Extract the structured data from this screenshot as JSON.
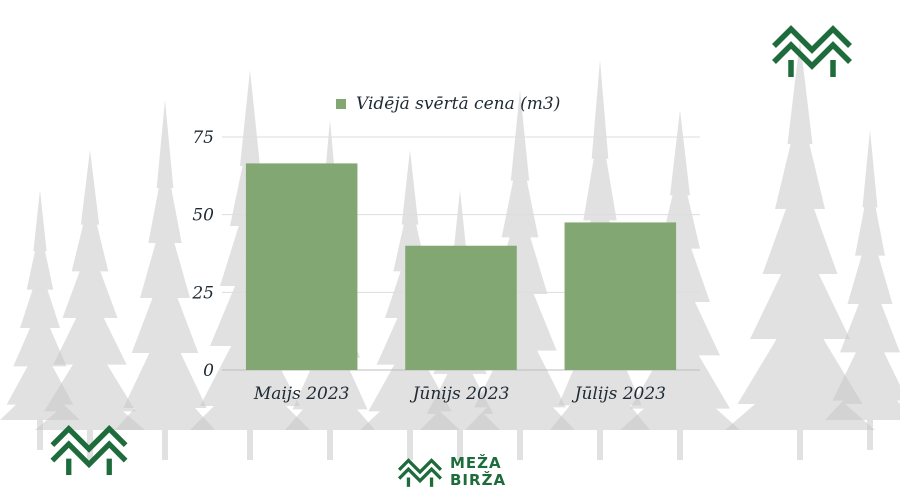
{
  "colors": {
    "bar": "#82a773",
    "brand": "#1e6b3c",
    "text": "#1f2a35",
    "grid": "#dddddd",
    "trees": "#c9c9c9"
  },
  "brand": {
    "line1": "MEŽA",
    "line2": "BIRŽA",
    "icon": "forest-logo-icon"
  },
  "chart_data": {
    "type": "bar",
    "categories": [
      "Maijs 2023",
      "Jūnijs 2023",
      "Jūlijs 2023"
    ],
    "series": [
      {
        "name": "Vidējā svērtā cena (m3)",
        "values": [
          66.5,
          40,
          47.5
        ]
      }
    ],
    "ylim": [
      0,
      75
    ],
    "yticks": [
      0,
      25,
      50,
      75
    ],
    "grid": true,
    "legend": "top"
  }
}
